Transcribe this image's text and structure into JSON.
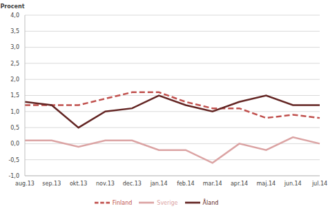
{
  "chart_data": {
    "type": "line",
    "y_label": "Procent",
    "categories": [
      "aug.13",
      "sep.13",
      "okt.13",
      "nov.13",
      "dec.13",
      "jan.14",
      "feb.14",
      "mar.14",
      "apr.14",
      "maj.14",
      "jun.14",
      "jul.14"
    ],
    "series": [
      {
        "name": "Sverige",
        "color": "#dba3a3",
        "line_style": "solid",
        "values": [
          0.1,
          0.1,
          -0.1,
          0.1,
          0.1,
          -0.2,
          -0.2,
          -0.6,
          0.0,
          -0.2,
          0.2,
          0.0
        ]
      },
      {
        "name": "Finland",
        "color": "#c0504d",
        "line_style": "dashed",
        "values": [
          1.2,
          1.2,
          1.2,
          1.4,
          1.6,
          1.6,
          1.3,
          1.1,
          1.1,
          0.8,
          0.9,
          0.8
        ]
      },
      {
        "name": "Åland",
        "color": "#632523",
        "line_style": "solid",
        "values": [
          1.3,
          1.2,
          0.5,
          1.0,
          1.1,
          1.5,
          1.2,
          1.0,
          1.3,
          1.5,
          1.2,
          1.2
        ]
      }
    ],
    "ylim": [
      -1,
      4
    ],
    "yticks": [
      {
        "value": -1,
        "label": "-1,0"
      },
      {
        "value": -0.5,
        "label": "-0,5"
      },
      {
        "value": 0,
        "label": "0,0"
      },
      {
        "value": 0.5,
        "label": "0,5"
      },
      {
        "value": 1,
        "label": "1,0"
      },
      {
        "value": 1.5,
        "label": "1,5"
      },
      {
        "value": 2,
        "label": "2,0"
      },
      {
        "value": 2.5,
        "label": "2,5"
      },
      {
        "value": 3,
        "label": "3,0"
      },
      {
        "value": 3.5,
        "label": "3,5"
      },
      {
        "value": 4,
        "label": "4,0"
      }
    ],
    "grid": true,
    "legend": "bottom"
  }
}
